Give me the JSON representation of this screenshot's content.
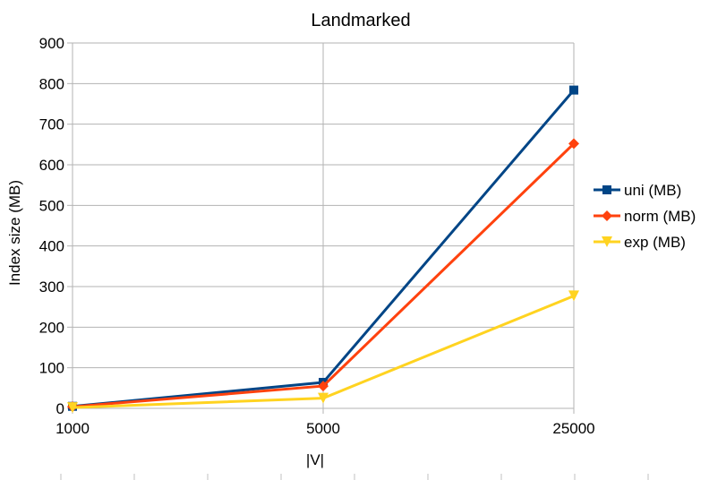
{
  "chart_data": {
    "type": "line",
    "title": "Landmarked",
    "xlabel": "|V|",
    "ylabel": "Index size (MB)",
    "categories": [
      "1000",
      "5000",
      "25000"
    ],
    "ylim": [
      0,
      900
    ],
    "yticks": [
      "0",
      "100",
      "200",
      "300",
      "400",
      "500",
      "600",
      "700",
      "800",
      "900"
    ],
    "grid": true,
    "legend_position": "right",
    "series": [
      {
        "name": "uni (MB)",
        "values": [
          5,
          64,
          784
        ],
        "color": "#004586",
        "marker": "square"
      },
      {
        "name": "norm (MB)",
        "values": [
          4,
          55,
          652
        ],
        "color": "#ff420e",
        "marker": "diamond"
      },
      {
        "name": "exp (MB)",
        "values": [
          2,
          25,
          277
        ],
        "color": "#ffd320",
        "marker": "triangle-down"
      }
    ]
  }
}
